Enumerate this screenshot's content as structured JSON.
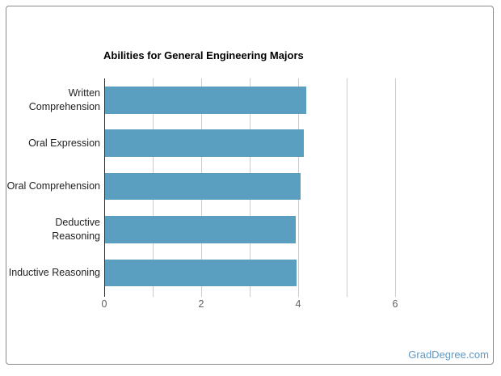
{
  "chart_data": {
    "type": "bar",
    "orientation": "horizontal",
    "title": "Abilities for General Engineering Majors",
    "categories": [
      "Written Comprehension",
      "Oral Expression",
      "Oral Comprehension",
      "Deductive Reasoning",
      "Inductive Reasoning"
    ],
    "label_lines": [
      [
        "Written",
        "Comprehension"
      ],
      [
        "Oral Expression"
      ],
      [
        "Oral Comprehension"
      ],
      [
        "Deductive",
        "Reasoning"
      ],
      [
        "Inductive Reasoning"
      ]
    ],
    "values": [
      4.16,
      4.12,
      4.05,
      3.95,
      3.96
    ],
    "xlabel": "",
    "ylabel": "",
    "xlim": [
      0,
      7
    ],
    "x_tick_labels": [
      0,
      2,
      4,
      6
    ],
    "gridline_interval": 1,
    "gridline_values": [
      1,
      2,
      3,
      4,
      5,
      6
    ],
    "grid": true,
    "legend": "none",
    "bar_color": "#5a9ec0"
  },
  "watermark": {
    "label": "GradDegree.com",
    "color": "#5d9ac6"
  },
  "colors": {
    "bar": "#5a9ec0",
    "gridline": "#cccccc",
    "axis_line": "#2a2a2a",
    "axis_tick_label": "#5f5f5f",
    "category_label": "#1f1f1f",
    "title": "#000000",
    "border": "#8a8a8a"
  }
}
